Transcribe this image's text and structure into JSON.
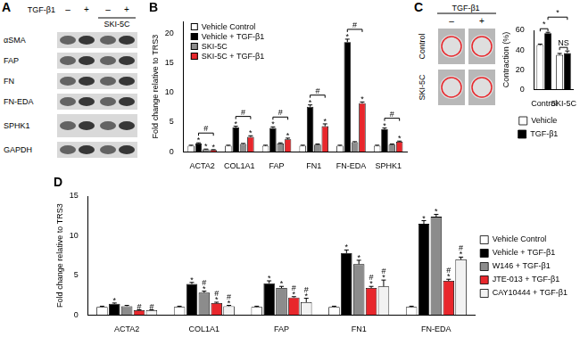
{
  "chart_data": [
    {
      "panel": "B",
      "type": "bar",
      "y_label": "Fold change relative to TRS3",
      "categories": [
        "ACTA2",
        "COL1A1",
        "FAP",
        "FN1",
        "FN-EDA",
        "SPHK1"
      ],
      "series": [
        {
          "name": "Vehicle Control",
          "color": "#ffffff",
          "values": [
            1,
            1,
            1,
            1,
            1,
            1
          ],
          "errors": [
            0.1,
            0.1,
            0.1,
            0.1,
            0.1,
            0.1
          ],
          "significance": [
            null,
            null,
            null,
            null,
            null,
            null
          ]
        },
        {
          "name": "Vehicle + TGF-β1",
          "color": "#000000",
          "values": [
            1.4,
            4.1,
            4.0,
            7.6,
            18.5,
            3.8
          ],
          "errors": [
            0.1,
            0.2,
            0.2,
            0.3,
            0.5,
            0.2
          ],
          "significance": [
            "*",
            "*",
            "*",
            "*",
            "*",
            "*"
          ]
        },
        {
          "name": "SKI-5C",
          "color": "#8c8c8c",
          "values": [
            0.4,
            1.3,
            1.4,
            1.2,
            1.6,
            1.2
          ],
          "errors": [
            0.05,
            0.1,
            0.1,
            0.1,
            0.1,
            0.1
          ],
          "significance": [
            "*",
            null,
            null,
            null,
            null,
            null
          ]
        },
        {
          "name": "SKI-5C + TGF-β1",
          "color": "#e8272c",
          "values": [
            0.3,
            2.5,
            2.1,
            4.3,
            8.2,
            1.7
          ],
          "errors": [
            0.05,
            0.2,
            0.2,
            0.4,
            0.2,
            0.1
          ],
          "significance": [
            "*",
            "*",
            "*",
            "*",
            "*",
            "*"
          ]
        }
      ],
      "brackets": [
        {
          "from": {
            "category": "ACTA2",
            "series": "Vehicle + TGF-β1"
          },
          "to": {
            "category": "ACTA2",
            "series": "SKI-5C + TGF-β1"
          },
          "label": "#"
        },
        {
          "from": {
            "category": "COL1A1",
            "series": "Vehicle + TGF-β1"
          },
          "to": {
            "category": "COL1A1",
            "series": "SKI-5C + TGF-β1"
          },
          "label": "#"
        },
        {
          "from": {
            "category": "FAP",
            "series": "Vehicle + TGF-β1"
          },
          "to": {
            "category": "FAP",
            "series": "SKI-5C + TGF-β1"
          },
          "label": "#"
        },
        {
          "from": {
            "category": "FN1",
            "series": "Vehicle + TGF-β1"
          },
          "to": {
            "category": "FN1",
            "series": "SKI-5C + TGF-β1"
          },
          "label": "#"
        },
        {
          "from": {
            "category": "FN-EDA",
            "series": "Vehicle + TGF-β1"
          },
          "to": {
            "category": "FN-EDA",
            "series": "SKI-5C + TGF-β1"
          },
          "label": "#"
        },
        {
          "from": {
            "category": "SPHK1",
            "series": "Vehicle + TGF-β1"
          },
          "to": {
            "category": "SPHK1",
            "series": "SKI-5C + TGF-β1"
          },
          "label": "#"
        }
      ],
      "ylim": [
        0,
        22
      ],
      "yticks": [
        0,
        5,
        10,
        15,
        20
      ],
      "grid": false,
      "legend": "upper left"
    },
    {
      "panel": "C",
      "type": "bar",
      "y_label": "Contraction (%)",
      "categories": [
        "Control",
        "SKI-5C"
      ],
      "series": [
        {
          "name": "Vehicle",
          "color": "#ffffff",
          "values": [
            45,
            35
          ],
          "errors": [
            1,
            1.5
          ],
          "significance": [
            null,
            null
          ]
        },
        {
          "name": "TGF-β1",
          "color": "#000000",
          "values": [
            57,
            37
          ],
          "errors": [
            1,
            2
          ],
          "significance": [
            null,
            null
          ]
        }
      ],
      "brackets": [
        {
          "from": {
            "category": "Control",
            "series": "Vehicle"
          },
          "to": {
            "category": "Control",
            "series": "TGF-β1"
          },
          "label": "*"
        },
        {
          "from": {
            "category": "SKI-5C",
            "series": "Vehicle"
          },
          "to": {
            "category": "SKI-5C",
            "series": "TGF-β1"
          },
          "label": "NS"
        },
        {
          "from": {
            "category": "Control",
            "series": "TGF-β1"
          },
          "to": {
            "category": "SKI-5C",
            "series": "TGF-β1"
          },
          "label": "*"
        }
      ],
      "ylim": [
        0,
        60
      ],
      "yticks": [
        0,
        20,
        40,
        60
      ],
      "grid": false,
      "legend": "bottom"
    },
    {
      "panel": "D",
      "type": "bar",
      "y_label": "Fold change relative to TRS3",
      "categories": [
        "ACTA2",
        "COL1A1",
        "FAP",
        "FN1",
        "FN-EDA"
      ],
      "series": [
        {
          "name": "Vehicle Control",
          "color": "#ffffff",
          "values": [
            1,
            1,
            1,
            1,
            1
          ],
          "errors": [
            0.1,
            0.1,
            0.1,
            0.1,
            0.1
          ],
          "significance": [
            null,
            null,
            null,
            null,
            null
          ]
        },
        {
          "name": "Vehicle + TGF-β1",
          "color": "#000000",
          "values": [
            1.4,
            3.9,
            4.0,
            7.8,
            11.5
          ],
          "errors": [
            0.1,
            0.2,
            0.3,
            0.4,
            0.4
          ],
          "significance": [
            "*",
            "*",
            "*",
            "*",
            "*"
          ]
        },
        {
          "name": "W146 + TGF-β1",
          "color": "#8c8c8c",
          "values": [
            1.1,
            2.8,
            3.4,
            6.4,
            12.4
          ],
          "errors": [
            0.1,
            0.2,
            0.2,
            0.5,
            0.3
          ],
          "significance": [
            null,
            "#*",
            "*",
            "*",
            "*"
          ]
        },
        {
          "name": "JTE-013 + TGF-β1",
          "color": "#e8272c",
          "values": [
            0.6,
            1.5,
            2.2,
            3.4,
            4.3
          ],
          "errors": [
            0.05,
            0.1,
            0.1,
            0.2,
            0.2
          ],
          "significance": [
            "#",
            "#*",
            "#*",
            "#*",
            "#*"
          ]
        },
        {
          "name": "CAY10444 + TGF-β1",
          "color": "#f2f2f2",
          "values": [
            0.6,
            1.1,
            1.6,
            3.6,
            7.0
          ],
          "errors": [
            0.05,
            0.1,
            0.5,
            0.8,
            0.3
          ],
          "significance": [
            "#",
            "#*",
            "#*",
            "#*",
            "#*"
          ]
        }
      ],
      "ylim": [
        0,
        15
      ],
      "yticks": [
        0,
        5,
        10,
        15
      ],
      "grid": false,
      "legend": "right"
    }
  ],
  "blot": {
    "panel": "A",
    "treatment": "TGF-β1",
    "lanes": [
      "–",
      "+",
      "–",
      "+"
    ],
    "group": "SKI-5C",
    "proteins": [
      "αSMA",
      "FAP",
      "FN",
      "FN-EDA",
      "SPHK1",
      "GAPDH"
    ]
  },
  "photos": {
    "panel": "C",
    "column_header": "TGF-β1",
    "columns": [
      "–",
      "+"
    ],
    "rows": [
      "Control",
      "SKI-5C"
    ]
  }
}
